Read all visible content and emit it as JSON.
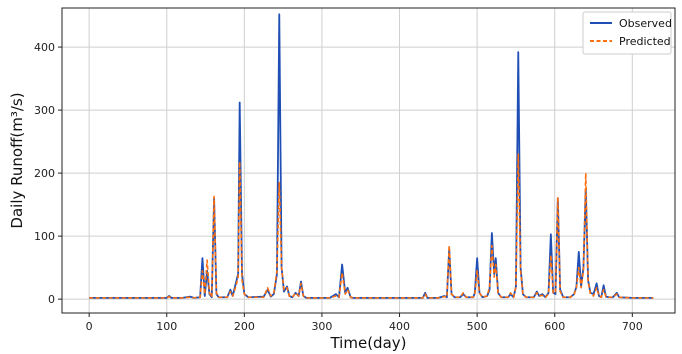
{
  "chart_data": {
    "type": "line",
    "xlabel": "Time(day)",
    "ylabel": "Daily Runoff(m³/s)",
    "xlim": [
      -35,
      755
    ],
    "ylim": [
      -22,
      462
    ],
    "xticks": [
      0,
      100,
      200,
      300,
      400,
      500,
      600,
      700
    ],
    "yticks": [
      0,
      100,
      200,
      300,
      400
    ],
    "grid": true,
    "legend_position": "top-right",
    "series": [
      {
        "name": "Observed",
        "color": "#1f4fb4",
        "style": "solid",
        "points": [
          [
            0,
            2
          ],
          [
            100,
            2
          ],
          [
            103,
            5
          ],
          [
            106,
            2
          ],
          [
            120,
            2
          ],
          [
            130,
            4
          ],
          [
            135,
            2
          ],
          [
            143,
            3
          ],
          [
            146,
            65
          ],
          [
            149,
            5
          ],
          [
            152,
            45
          ],
          [
            155,
            8
          ],
          [
            158,
            3
          ],
          [
            161,
            160
          ],
          [
            164,
            8
          ],
          [
            167,
            3
          ],
          [
            178,
            3
          ],
          [
            182,
            15
          ],
          [
            185,
            5
          ],
          [
            189,
            25
          ],
          [
            192,
            40
          ],
          [
            194,
            312
          ],
          [
            197,
            40
          ],
          [
            200,
            8
          ],
          [
            205,
            3
          ],
          [
            225,
            4
          ],
          [
            230,
            15
          ],
          [
            234,
            4
          ],
          [
            238,
            8
          ],
          [
            242,
            40
          ],
          [
            245,
            452
          ],
          [
            248,
            50
          ],
          [
            251,
            12
          ],
          [
            255,
            20
          ],
          [
            258,
            5
          ],
          [
            262,
            3
          ],
          [
            266,
            10
          ],
          [
            270,
            5
          ],
          [
            273,
            28
          ],
          [
            276,
            5
          ],
          [
            280,
            2
          ],
          [
            310,
            2
          ],
          [
            318,
            8
          ],
          [
            322,
            3
          ],
          [
            326,
            55
          ],
          [
            330,
            10
          ],
          [
            333,
            18
          ],
          [
            337,
            3
          ],
          [
            340,
            2
          ],
          [
            430,
            2
          ],
          [
            433,
            10
          ],
          [
            436,
            2
          ],
          [
            450,
            2
          ],
          [
            458,
            5
          ],
          [
            461,
            3
          ],
          [
            464,
            80
          ],
          [
            467,
            8
          ],
          [
            471,
            3
          ],
          [
            478,
            3
          ],
          [
            482,
            8
          ],
          [
            486,
            3
          ],
          [
            495,
            3
          ],
          [
            497,
            10
          ],
          [
            500,
            65
          ],
          [
            503,
            10
          ],
          [
            507,
            3
          ],
          [
            513,
            5
          ],
          [
            516,
            15
          ],
          [
            519,
            105
          ],
          [
            522,
            40
          ],
          [
            524,
            65
          ],
          [
            527,
            10
          ],
          [
            531,
            3
          ],
          [
            540,
            3
          ],
          [
            543,
            8
          ],
          [
            547,
            3
          ],
          [
            550,
            20
          ],
          [
            553,
            392
          ],
          [
            556,
            50
          ],
          [
            559,
            8
          ],
          [
            563,
            3
          ],
          [
            573,
            3
          ],
          [
            577,
            12
          ],
          [
            580,
            5
          ],
          [
            584,
            8
          ],
          [
            588,
            3
          ],
          [
            592,
            10
          ],
          [
            595,
            103
          ],
          [
            598,
            10
          ],
          [
            601,
            8
          ],
          [
            604,
            160
          ],
          [
            607,
            15
          ],
          [
            611,
            3
          ],
          [
            620,
            3
          ],
          [
            625,
            8
          ],
          [
            628,
            20
          ],
          [
            631,
            75
          ],
          [
            634,
            20
          ],
          [
            637,
            50
          ],
          [
            640,
            175
          ],
          [
            643,
            30
          ],
          [
            646,
            10
          ],
          [
            650,
            8
          ],
          [
            654,
            25
          ],
          [
            657,
            5
          ],
          [
            660,
            3
          ],
          [
            663,
            22
          ],
          [
            666,
            4
          ],
          [
            670,
            3
          ],
          [
            675,
            3
          ],
          [
            680,
            10
          ],
          [
            683,
            3
          ],
          [
            700,
            2
          ],
          [
            727,
            2
          ]
        ]
      },
      {
        "name": "Predicted",
        "color": "#ff6f0e",
        "style": "dashed",
        "points": [
          [
            0,
            2
          ],
          [
            100,
            2
          ],
          [
            103,
            4
          ],
          [
            106,
            2
          ],
          [
            120,
            2
          ],
          [
            130,
            3
          ],
          [
            135,
            2
          ],
          [
            143,
            3
          ],
          [
            146,
            45
          ],
          [
            149,
            8
          ],
          [
            152,
            62
          ],
          [
            155,
            10
          ],
          [
            158,
            3
          ],
          [
            161,
            163
          ],
          [
            164,
            10
          ],
          [
            167,
            3
          ],
          [
            178,
            3
          ],
          [
            182,
            12
          ],
          [
            185,
            5
          ],
          [
            189,
            20
          ],
          [
            192,
            35
          ],
          [
            194,
            218
          ],
          [
            197,
            30
          ],
          [
            200,
            8
          ],
          [
            205,
            3
          ],
          [
            225,
            3
          ],
          [
            230,
            18
          ],
          [
            234,
            5
          ],
          [
            238,
            10
          ],
          [
            242,
            45
          ],
          [
            245,
            185
          ],
          [
            248,
            50
          ],
          [
            251,
            15
          ],
          [
            255,
            18
          ],
          [
            258,
            5
          ],
          [
            262,
            3
          ],
          [
            266,
            10
          ],
          [
            270,
            5
          ],
          [
            273,
            25
          ],
          [
            276,
            5
          ],
          [
            280,
            2
          ],
          [
            310,
            2
          ],
          [
            318,
            5
          ],
          [
            322,
            3
          ],
          [
            326,
            42
          ],
          [
            330,
            8
          ],
          [
            333,
            15
          ],
          [
            337,
            3
          ],
          [
            340,
            2
          ],
          [
            430,
            2
          ],
          [
            433,
            8
          ],
          [
            436,
            2
          ],
          [
            450,
            2
          ],
          [
            458,
            4
          ],
          [
            461,
            3
          ],
          [
            464,
            85
          ],
          [
            467,
            8
          ],
          [
            471,
            3
          ],
          [
            478,
            3
          ],
          [
            482,
            10
          ],
          [
            486,
            3
          ],
          [
            495,
            3
          ],
          [
            497,
            8
          ],
          [
            500,
            45
          ],
          [
            503,
            10
          ],
          [
            507,
            3
          ],
          [
            513,
            5
          ],
          [
            516,
            20
          ],
          [
            519,
            85
          ],
          [
            522,
            35
          ],
          [
            524,
            55
          ],
          [
            527,
            10
          ],
          [
            531,
            3
          ],
          [
            540,
            3
          ],
          [
            543,
            10
          ],
          [
            547,
            3
          ],
          [
            550,
            20
          ],
          [
            553,
            230
          ],
          [
            556,
            45
          ],
          [
            559,
            8
          ],
          [
            563,
            3
          ],
          [
            573,
            3
          ],
          [
            577,
            10
          ],
          [
            580,
            5
          ],
          [
            584,
            6
          ],
          [
            588,
            3
          ],
          [
            592,
            8
          ],
          [
            595,
            70
          ],
          [
            598,
            10
          ],
          [
            601,
            10
          ],
          [
            604,
            162
          ],
          [
            607,
            12
          ],
          [
            611,
            3
          ],
          [
            620,
            3
          ],
          [
            625,
            8
          ],
          [
            628,
            18
          ],
          [
            631,
            50
          ],
          [
            634,
            18
          ],
          [
            637,
            45
          ],
          [
            640,
            200
          ],
          [
            643,
            28
          ],
          [
            646,
            8
          ],
          [
            650,
            5
          ],
          [
            654,
            18
          ],
          [
            657,
            5
          ],
          [
            660,
            3
          ],
          [
            663,
            15
          ],
          [
            666,
            4
          ],
          [
            670,
            3
          ],
          [
            675,
            3
          ],
          [
            680,
            8
          ],
          [
            683,
            3
          ],
          [
            700,
            2
          ],
          [
            727,
            2
          ]
        ]
      }
    ]
  }
}
